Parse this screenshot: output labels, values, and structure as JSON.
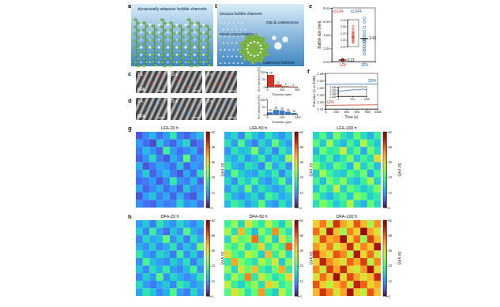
{
  "figure": {
    "panel_labels": [
      "a",
      "b",
      "c",
      "d",
      "e",
      "f",
      "g",
      "h"
    ],
    "illustration_a": {
      "title": "dynamically adaptive bubble channels"
    },
    "illustration_b": {
      "labels": [
        "tortuous bubble channels",
        "stress concentration",
        "trap & coalescence",
        "coalesced bubbles"
      ]
    },
    "photos": {
      "rows": [
        "LFA",
        "DFA"
      ],
      "times": [
        "1 s",
        "2 s",
        "3 s"
      ]
    }
  },
  "chart_data": [
    {
      "type": "histogram",
      "xlabel": "Diameter (μm)",
      "ylabel": "Size distribution (%)",
      "bins": [
        0,
        200,
        400,
        600,
        800
      ],
      "values": [
        79,
        15,
        4,
        2
      ],
      "color": "#d7301f",
      "xlim": [
        0,
        800
      ],
      "xticks": [
        0,
        400,
        800
      ],
      "ylim": [
        0,
        100
      ],
      "yticks": [
        0,
        50,
        100
      ],
      "data_labels": true
    },
    {
      "type": "histogram",
      "xlabel": "Diameter (μm)",
      "ylabel": "Size distribution (%)",
      "bins": [
        0,
        200,
        400,
        600,
        800,
        1000
      ],
      "values": [
        14,
        31,
        26,
        18,
        11
      ],
      "color": "#3a78c2",
      "xlim": [
        0,
        1000
      ],
      "xticks": [
        0,
        500,
        1000
      ],
      "ylim": [
        0,
        100
      ],
      "yticks": [
        0,
        50,
        100
      ],
      "data_labels": true
    },
    {
      "type": "scatter",
      "ylabel": "Bubble size (mm)",
      "ylim": [
        0,
        8
      ],
      "yticks": [
        {
          "value": 0,
          "label": "0.00"
        },
        {
          "value": 2,
          "label": "2.00"
        },
        {
          "value": 4,
          "label": "4.00"
        },
        {
          "value": 6,
          "label": "6.00"
        },
        {
          "value": 8,
          "label": "8.00"
        }
      ],
      "legend": "upper left",
      "series": [
        {
          "name": "LFA",
          "color": "#d7301f",
          "marker": "circle",
          "values": [
            0.18,
            0.2,
            0.21,
            0.22,
            0.23,
            0.24,
            0.25,
            0.26,
            0.28,
            0.3,
            0.22,
            0.19
          ],
          "mean": 0.23
        },
        {
          "name": "DFA",
          "color": "#2166ac",
          "marker": "circle",
          "values": [
            1.1,
            1.6,
            2.2,
            2.6,
            3.0,
            3.3,
            3.6,
            4.0,
            4.5,
            5.1,
            5.9,
            6.4,
            1.9,
            3.0,
            3.3
          ],
          "mean": 3.43
        }
      ],
      "inset": {
        "ylim": [
          0.15,
          0.35
        ],
        "yticks": [
          0.15,
          {
            "value": 0.2,
            "label": "0.20"
          },
          0.25,
          {
            "value": 0.3,
            "label": "0.30"
          },
          0.35
        ]
      }
    },
    {
      "type": "line",
      "xlabel": "Time (s)",
      "ylabel": "Potential (V vs RHE)",
      "x": [
        0,
        50,
        100,
        150,
        200,
        250,
        300,
        350,
        400,
        450,
        500,
        550,
        600,
        650,
        700,
        750,
        800,
        850,
        900,
        950,
        1000
      ],
      "xlim": [
        0,
        1000
      ],
      "xticks": [
        0,
        200,
        400,
        600,
        800,
        1000
      ],
      "ylim": [
        1.41,
        1.46
      ],
      "yticks": [
        1.41,
        1.42,
        1.43,
        1.44,
        1.45,
        1.46
      ],
      "series": [
        {
          "name": "DFA",
          "color": "#2166ac",
          "values": [
            1.4443,
            1.4445,
            1.4447,
            1.4446,
            1.4448,
            1.4447,
            1.4449,
            1.4448,
            1.445,
            1.4449,
            1.4451,
            1.445,
            1.4452,
            1.4451,
            1.445,
            1.4452,
            1.4451,
            1.4453,
            1.4452,
            1.4451,
            1.4452
          ]
        },
        {
          "name": "LFA",
          "color": "#d7301f",
          "values": [
            1.4148,
            1.415,
            1.4151,
            1.4151,
            1.4152,
            1.4152,
            1.4153,
            1.4153,
            1.4154,
            1.4154,
            1.4155,
            1.4155,
            1.4155,
            1.4156,
            1.4156,
            1.4156,
            1.4157,
            1.4157,
            1.4157,
            1.4158,
            1.4158
          ]
        }
      ],
      "inset": {
        "xlim": [
          0,
          1000
        ],
        "xticks": [
          0,
          500,
          1000
        ],
        "ylim": [
          1.443,
          1.446
        ],
        "yticks": [
          1.443,
          1.444,
          1.445,
          1.446
        ]
      }
    },
    {
      "type": "heatmap",
      "title": "LFA-20 h",
      "tick_labels": false,
      "cells": [
        [
          6,
          10,
          14,
          8,
          12,
          20,
          9,
          7,
          11,
          15
        ],
        [
          12,
          8,
          5,
          16,
          10,
          7,
          13,
          18,
          6,
          9
        ],
        [
          9,
          15,
          11,
          7,
          22,
          12,
          8,
          10,
          14,
          7
        ],
        [
          7,
          11,
          18,
          9,
          6,
          14,
          10,
          25,
          9,
          12
        ],
        [
          14,
          6,
          9,
          13,
          11,
          8,
          16,
          7,
          12,
          10
        ],
        [
          10,
          17,
          7,
          11,
          15,
          9,
          6,
          13,
          8,
          19
        ],
        [
          8,
          9,
          12,
          6,
          10,
          21,
          11,
          9,
          15,
          7
        ],
        [
          13,
          7,
          10,
          14,
          8,
          12,
          7,
          16,
          10,
          11
        ],
        [
          6,
          12,
          16,
          9,
          13,
          7,
          14,
          8,
          6,
          13
        ],
        [
          11,
          8,
          7,
          12,
          9,
          10,
          18,
          11,
          13,
          8
        ]
      ],
      "colorbar": {
        "label": "ΔV (mV)",
        "range": [
          0,
          60
        ],
        "ticks": [
          0,
          12,
          24,
          36,
          48,
          60
        ]
      }
    },
    {
      "type": "heatmap",
      "title": "LFA-60 h",
      "tick_labels": false,
      "cells": [
        [
          14,
          18,
          10,
          22,
          16,
          12,
          20,
          15,
          11,
          17
        ],
        [
          19,
          12,
          24,
          14,
          9,
          18,
          13,
          26,
          16,
          12
        ],
        [
          11,
          20,
          15,
          17,
          28,
          13,
          19,
          10,
          21,
          15
        ],
        [
          16,
          13,
          19,
          11,
          15,
          22,
          12,
          18,
          14,
          30
        ],
        [
          22,
          15,
          12,
          20,
          17,
          10,
          24,
          13,
          19,
          11
        ],
        [
          13,
          25,
          17,
          14,
          12,
          19,
          15,
          21,
          10,
          18
        ],
        [
          18,
          11,
          21,
          16,
          23,
          14,
          11,
          17,
          25,
          13
        ],
        [
          12,
          19,
          14,
          27,
          13,
          20,
          16,
          12,
          15,
          22
        ],
        [
          20,
          14,
          11,
          15,
          18,
          12,
          23,
          19,
          13,
          16
        ],
        [
          15,
          22,
          18,
          12,
          16,
          26,
          14,
          11,
          20,
          14
        ]
      ],
      "colorbar": {
        "label": "ΔV (mV)",
        "range": [
          0,
          60
        ],
        "ticks": [
          0,
          12,
          24,
          36,
          48,
          60
        ]
      }
    },
    {
      "type": "heatmap",
      "title": "LFA-100 h",
      "tick_labels": false,
      "cells": [
        [
          18,
          24,
          15,
          28,
          20,
          16,
          26,
          19,
          14,
          22
        ],
        [
          25,
          16,
          30,
          19,
          14,
          23,
          17,
          32,
          21,
          16
        ],
        [
          15,
          27,
          20,
          22,
          34,
          18,
          25,
          13,
          27,
          19
        ],
        [
          21,
          17,
          24,
          15,
          20,
          28,
          16,
          23,
          18,
          36
        ],
        [
          28,
          20,
          16,
          26,
          22,
          14,
          30,
          17,
          24,
          15
        ],
        [
          17,
          31,
          22,
          18,
          16,
          25,
          20,
          27,
          13,
          23
        ],
        [
          23,
          15,
          27,
          21,
          29,
          18,
          15,
          22,
          31,
          17
        ],
        [
          16,
          25,
          19,
          33,
          17,
          26,
          21,
          16,
          20,
          28
        ],
        [
          26,
          18,
          14,
          20,
          24,
          16,
          29,
          25,
          17,
          21
        ],
        [
          19,
          28,
          23,
          16,
          21,
          32,
          18,
          14,
          26,
          18
        ]
      ],
      "colorbar": {
        "label": "ΔV (mV)",
        "range": [
          0,
          60
        ],
        "ticks": [
          0,
          12,
          24,
          36,
          48,
          60
        ]
      }
    },
    {
      "type": "heatmap",
      "title": "DFA-20 h",
      "tick_labels": false,
      "cells": [
        [
          12,
          16,
          9,
          20,
          14,
          11,
          18,
          13,
          10,
          15
        ],
        [
          17,
          10,
          22,
          12,
          8,
          16,
          11,
          24,
          14,
          10
        ],
        [
          10,
          18,
          13,
          15,
          26,
          11,
          17,
          9,
          19,
          13
        ],
        [
          14,
          11,
          17,
          10,
          13,
          20,
          10,
          16,
          12,
          27
        ],
        [
          20,
          13,
          10,
          18,
          15,
          9,
          22,
          11,
          17,
          10
        ],
        [
          11,
          23,
          15,
          12,
          10,
          17,
          13,
          19,
          9,
          16
        ],
        [
          16,
          10,
          19,
          14,
          21,
          12,
          10,
          15,
          23,
          11
        ],
        [
          10,
          17,
          12,
          25,
          11,
          18,
          14,
          10,
          13,
          20
        ],
        [
          18,
          12,
          9,
          13,
          16,
          10,
          21,
          17,
          11,
          14
        ],
        [
          13,
          20,
          16,
          10,
          14,
          24,
          12,
          9,
          18,
          12
        ]
      ],
      "colorbar": {
        "label": "ΔV (mV)",
        "range": [
          0,
          60
        ],
        "ticks": [
          0,
          12,
          24,
          36,
          48,
          60
        ]
      }
    },
    {
      "type": "heatmap",
      "title": "DFA-60 h",
      "tick_labels": false,
      "cells": [
        [
          22,
          30,
          18,
          36,
          26,
          20,
          33,
          24,
          17,
          28
        ],
        [
          31,
          19,
          40,
          23,
          15,
          29,
          21,
          44,
          26,
          19
        ],
        [
          18,
          34,
          25,
          28,
          47,
          21,
          31,
          16,
          35,
          24
        ],
        [
          27,
          21,
          30,
          18,
          24,
          37,
          20,
          29,
          22,
          48
        ],
        [
          36,
          25,
          20,
          33,
          28,
          17,
          40,
          21,
          31,
          18
        ],
        [
          21,
          42,
          28,
          23,
          19,
          32,
          25,
          35,
          16,
          29
        ],
        [
          29,
          18,
          35,
          26,
          39,
          22,
          18,
          27,
          41,
          21
        ],
        [
          19,
          31,
          23,
          45,
          20,
          34,
          26,
          19,
          24,
          37
        ],
        [
          33,
          22,
          17,
          24,
          30,
          19,
          38,
          32,
          21,
          26
        ],
        [
          24,
          36,
          29,
          19,
          26,
          43,
          22,
          17,
          33,
          23
        ]
      ],
      "colorbar": {
        "label": "ΔV (mV)",
        "range": [
          0,
          60
        ],
        "ticks": [
          0,
          12,
          24,
          36,
          48,
          60
        ]
      }
    },
    {
      "type": "heatmap",
      "title": "DFA-100 h",
      "tick_labels": false,
      "cells": [
        [
          38,
          46,
          33,
          52,
          42,
          36,
          49,
          40,
          31,
          44
        ],
        [
          47,
          35,
          55,
          39,
          30,
          45,
          37,
          58,
          42,
          35
        ],
        [
          34,
          50,
          41,
          44,
          57,
          37,
          47,
          30,
          51,
          40
        ],
        [
          43,
          37,
          46,
          34,
          40,
          53,
          36,
          45,
          38,
          56
        ],
        [
          52,
          41,
          36,
          49,
          44,
          33,
          55,
          37,
          47,
          34
        ],
        [
          37,
          54,
          44,
          39,
          35,
          48,
          41,
          51,
          32,
          45
        ],
        [
          45,
          34,
          51,
          42,
          53,
          38,
          34,
          43,
          56,
          37
        ],
        [
          35,
          47,
          39,
          57,
          36,
          50,
          42,
          35,
          40,
          53
        ],
        [
          49,
          38,
          33,
          40,
          46,
          35,
          54,
          48,
          37,
          42
        ],
        [
          40,
          52,
          45,
          35,
          42,
          56,
          38,
          33,
          49,
          39
        ]
      ],
      "colorbar": {
        "label": "ΔV (mV)",
        "range": [
          0,
          60
        ],
        "ticks": [
          0,
          12,
          24,
          36,
          48,
          60
        ]
      }
    }
  ]
}
